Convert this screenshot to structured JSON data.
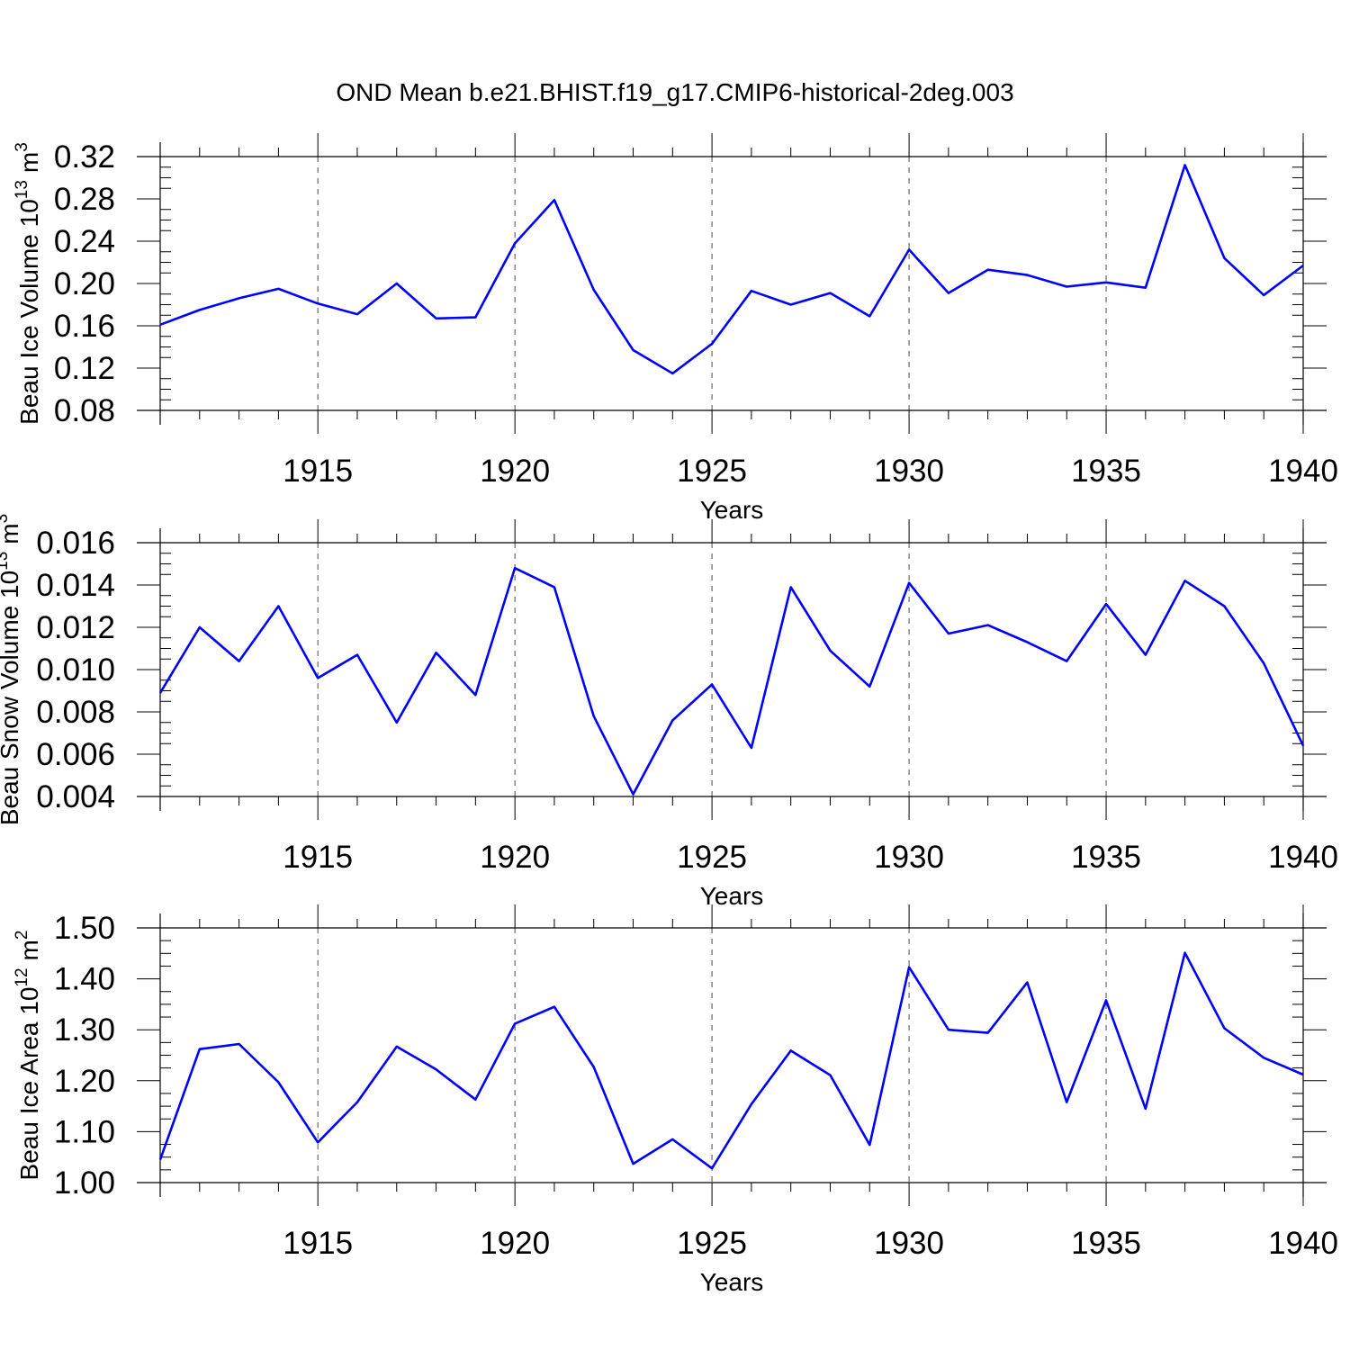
{
  "title": "OND Mean b.e21.BHIST.f19_g17.CMIP6-historical-2deg.003",
  "colors": {
    "series": "#0000ff",
    "axes": "#000000",
    "grid": "#000000"
  },
  "chart_data": [
    {
      "type": "line",
      "ylabel": {
        "text": "Beau Ice Volume 10",
        "exponent": "13",
        "unit": "m",
        "unit_exponent": "3"
      },
      "xlabel": "Years",
      "xlim": [
        1911,
        1940
      ],
      "ylim": [
        0.08,
        0.32
      ],
      "yticks": [
        "0.08",
        "0.12",
        "0.16",
        "0.20",
        "0.24",
        "0.28",
        "0.32"
      ],
      "xticks": [
        "1915",
        "1920",
        "1925",
        "1930",
        "1935",
        "1940"
      ],
      "grid": "dashed vertical at major x ticks",
      "x": [
        1911,
        1912,
        1913,
        1914,
        1915,
        1916,
        1917,
        1918,
        1919,
        1920,
        1921,
        1922,
        1923,
        1924,
        1925,
        1926,
        1927,
        1928,
        1929,
        1930,
        1931,
        1932,
        1933,
        1934,
        1935,
        1936,
        1937,
        1938,
        1939,
        1940
      ],
      "series": [
        {
          "values": [
            0.161,
            0.175,
            0.186,
            0.195,
            0.181,
            0.171,
            0.2,
            0.167,
            0.168,
            0.238,
            0.279,
            0.194,
            0.137,
            0.115,
            0.143,
            0.193,
            0.18,
            0.191,
            0.169,
            0.232,
            0.191,
            0.213,
            0.208,
            0.197,
            0.201,
            0.196,
            0.312,
            0.224,
            0.189,
            0.217
          ]
        }
      ]
    },
    {
      "type": "line",
      "ylabel": {
        "text": "Beau Snow Volume 10",
        "exponent": "13",
        "unit": "m",
        "unit_exponent": "3"
      },
      "xlabel": "Years",
      "xlim": [
        1911,
        1940
      ],
      "ylim": [
        0.004,
        0.016
      ],
      "yticks": [
        "0.004",
        "0.006",
        "0.008",
        "0.010",
        "0.012",
        "0.014",
        "0.016"
      ],
      "xticks": [
        "1915",
        "1920",
        "1925",
        "1930",
        "1935",
        "1940"
      ],
      "grid": "dashed vertical at major x ticks",
      "x": [
        1911,
        1912,
        1913,
        1914,
        1915,
        1916,
        1917,
        1918,
        1919,
        1920,
        1921,
        1922,
        1923,
        1924,
        1925,
        1926,
        1927,
        1928,
        1929,
        1930,
        1931,
        1932,
        1933,
        1934,
        1935,
        1936,
        1937,
        1938,
        1939,
        1940
      ],
      "series": [
        {
          "values": [
            0.0089,
            0.012,
            0.0104,
            0.013,
            0.0096,
            0.0107,
            0.0075,
            0.0108,
            0.0088,
            0.0148,
            0.0139,
            0.0078,
            0.0041,
            0.0076,
            0.0093,
            0.0063,
            0.0139,
            0.0109,
            0.0092,
            0.0141,
            0.0117,
            0.0121,
            0.0113,
            0.0104,
            0.0131,
            0.0107,
            0.0142,
            0.013,
            0.0103,
            0.0064
          ]
        }
      ]
    },
    {
      "type": "line",
      "ylabel": {
        "text": "Beau Ice Area 10",
        "exponent": "12",
        "unit": "m",
        "unit_exponent": "2"
      },
      "xlabel": "Years",
      "xlim": [
        1911,
        1940
      ],
      "ylim": [
        1.0,
        1.5
      ],
      "yticks": [
        "1.00",
        "1.10",
        "1.20",
        "1.30",
        "1.40",
        "1.50"
      ],
      "xticks": [
        "1915",
        "1920",
        "1925",
        "1930",
        "1935",
        "1940"
      ],
      "grid": "dashed vertical at major x ticks",
      "x": [
        1911,
        1912,
        1913,
        1914,
        1915,
        1916,
        1917,
        1918,
        1919,
        1920,
        1921,
        1922,
        1923,
        1924,
        1925,
        1926,
        1927,
        1928,
        1929,
        1930,
        1931,
        1932,
        1933,
        1934,
        1935,
        1936,
        1937,
        1938,
        1939,
        1940
      ],
      "series": [
        {
          "values": [
            1.045,
            1.262,
            1.272,
            1.197,
            1.079,
            1.158,
            1.267,
            1.222,
            1.163,
            1.312,
            1.345,
            1.227,
            1.037,
            1.085,
            1.028,
            1.154,
            1.259,
            1.211,
            1.074,
            1.423,
            1.3,
            1.294,
            1.393,
            1.158,
            1.358,
            1.145,
            1.451,
            1.303,
            1.245,
            1.212
          ]
        }
      ]
    }
  ]
}
